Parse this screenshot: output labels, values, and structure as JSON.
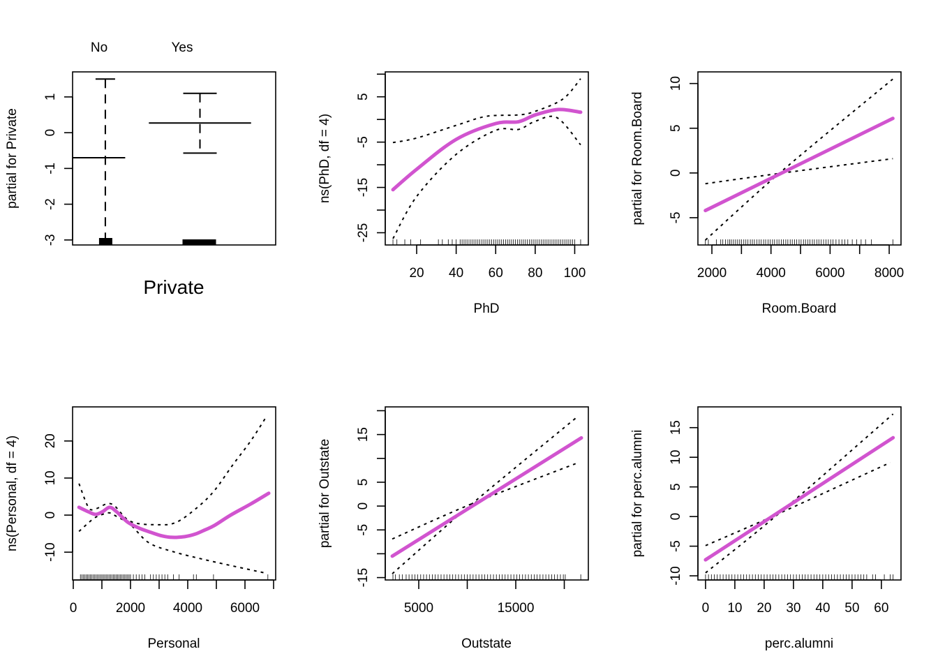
{
  "colors": {
    "fit": "#D154CF",
    "band": "#000000",
    "axis": "#000000"
  },
  "chart_data": [
    {
      "type": "line",
      "subtype": "factor",
      "xlabel": "Private",
      "ylabel": "partial for Private",
      "categories": [
        "No",
        "Yes"
      ],
      "ylim": [
        -3.14,
        1.7
      ],
      "yticks": [
        -3,
        -2,
        -1,
        0,
        1
      ],
      "ytick_labels": [
        "-3",
        "-2",
        "-1",
        "0",
        "1"
      ],
      "means": [
        -0.7,
        0.27
      ],
      "upper": [
        1.5,
        1.1
      ],
      "lower": [
        -3.0,
        -0.57
      ],
      "mean_span": [
        [
          0.654,
          1.21
        ],
        [
          1.46,
          2.54
        ]
      ]
    },
    {
      "type": "line",
      "xlabel": "PhD",
      "ylabel": "ns(PhD, df = 4)",
      "xlim": [
        4.1,
        106.9
      ],
      "ylim": [
        -27.7,
        10.5
      ],
      "xticks": [
        20,
        40,
        60,
        80,
        100
      ],
      "xtick_labels": [
        "20",
        "40",
        "60",
        "80",
        "100"
      ],
      "yticks": [
        -25,
        -20,
        -15,
        -10,
        -5,
        0,
        5,
        10
      ],
      "ytick_labels": [
        "-25",
        "",
        "-15",
        "",
        "-5",
        "",
        "5",
        ""
      ],
      "fit": [
        [
          8,
          -15.5
        ],
        [
          20,
          -11.0
        ],
        [
          40,
          -4.4
        ],
        [
          60,
          -0.9
        ],
        [
          71.6,
          -0.5
        ],
        [
          80,
          1.0
        ],
        [
          91.8,
          2.2
        ],
        [
          103,
          1.6
        ]
      ],
      "upper": [
        [
          8,
          -5.1
        ],
        [
          20,
          -4.1
        ],
        [
          40,
          -1.3
        ],
        [
          55.4,
          0.7
        ],
        [
          71.6,
          1.0
        ],
        [
          80,
          1.8
        ],
        [
          94,
          4.5
        ],
        [
          103,
          9.0
        ]
      ],
      "lower": [
        [
          8,
          -26.3
        ],
        [
          20,
          -17
        ],
        [
          40,
          -7.7
        ],
        [
          60,
          -2.4
        ],
        [
          71.6,
          -2.2
        ],
        [
          80,
          -0.4
        ],
        [
          91,
          0.4
        ],
        [
          103,
          -5.6
        ]
      ],
      "rug": [
        8,
        10,
        14,
        17,
        22,
        31,
        33,
        36,
        38,
        40,
        42,
        43,
        44,
        45,
        46,
        47,
        48,
        49,
        50,
        51,
        52,
        53,
        54,
        55,
        56,
        57,
        58,
        59,
        60,
        61,
        62,
        63,
        64,
        65,
        66,
        67,
        68,
        69,
        70,
        71,
        72,
        73,
        74,
        75,
        76,
        77,
        78,
        79,
        80,
        81,
        82,
        83,
        84,
        85,
        86,
        87,
        88,
        89,
        90,
        91,
        92,
        93,
        94,
        95,
        96,
        97,
        98,
        99,
        100,
        103
      ]
    },
    {
      "type": "line",
      "xlabel": "Room.Board",
      "ylabel": "partial for Room.Board",
      "xlim": [
        1527,
        8400
      ],
      "ylim": [
        -8.05,
        11.3
      ],
      "xticks": [
        2000,
        3000,
        4000,
        5000,
        6000,
        7000,
        8000
      ],
      "xtick_labels": [
        "2000",
        "",
        "4000",
        "",
        "6000",
        "",
        "8000"
      ],
      "yticks": [
        -5,
        0,
        5,
        10
      ],
      "ytick_labels": [
        "-5",
        "0",
        "5",
        "10"
      ],
      "fit": [
        [
          1780,
          -4.2
        ],
        [
          8124,
          6.1
        ]
      ],
      "upper": [
        [
          1780,
          -7.5
        ],
        [
          4400,
          0.3
        ],
        [
          8124,
          10.5
        ]
      ],
      "lower": [
        [
          1780,
          -1.2
        ],
        [
          4400,
          0.0
        ],
        [
          8124,
          1.6
        ]
      ],
      "rug": [
        1780,
        1880,
        2150,
        2300,
        2370,
        2460,
        2540,
        2600,
        2660,
        2730,
        2800,
        2870,
        2940,
        3000,
        3080,
        3150,
        3220,
        3300,
        3370,
        3440,
        3520,
        3600,
        3670,
        3750,
        3820,
        3900,
        3970,
        4050,
        4120,
        4200,
        4270,
        4350,
        4420,
        4500,
        4570,
        4650,
        4720,
        4800,
        4870,
        4950,
        5020,
        5100,
        5170,
        5250,
        5320,
        5400,
        5470,
        5550,
        5620,
        5700,
        5780,
        5860,
        5940,
        6020,
        6100,
        6200,
        6300,
        6400,
        6500,
        6600,
        6750,
        6900,
        7050,
        7200,
        7400,
        8124
      ]
    },
    {
      "type": "line",
      "xlabel": "Personal",
      "ylabel": "ns(Personal, df = 4)",
      "xlim": [
        -24,
        7073
      ],
      "ylim": [
        -17.5,
        29.2
      ],
      "xticks": [
        0,
        1000,
        2000,
        3000,
        4000,
        5000,
        6000,
        7000
      ],
      "xtick_labels": [
        "0",
        "",
        "2000",
        "",
        "4000",
        "",
        "6000",
        ""
      ],
      "yticks": [
        -10,
        0,
        10,
        20
      ],
      "ytick_labels": [
        "-10",
        "0",
        "10",
        "20"
      ],
      "fit": [
        [
          200,
          2.1
        ],
        [
          530,
          0.9
        ],
        [
          780,
          0.2
        ],
        [
          1020,
          0.9
        ],
        [
          1270,
          2.1
        ],
        [
          1500,
          1.0
        ],
        [
          1900,
          -1.9
        ],
        [
          2300,
          -3.5
        ],
        [
          2730,
          -4.7
        ],
        [
          3100,
          -5.6
        ],
        [
          3460,
          -6.0
        ],
        [
          3900,
          -5.8
        ],
        [
          4270,
          -5.1
        ],
        [
          4600,
          -4.0
        ],
        [
          4930,
          -2.8
        ],
        [
          5500,
          0.0
        ],
        [
          6200,
          3.0
        ],
        [
          6830,
          5.9
        ]
      ],
      "upper": [
        [
          200,
          8.5
        ],
        [
          530,
          2.1
        ],
        [
          780,
          1.7
        ],
        [
          1340,
          3.0
        ],
        [
          2000,
          -1.7
        ],
        [
          2980,
          -2.6
        ],
        [
          3610,
          -1.9
        ],
        [
          4340,
          2.1
        ],
        [
          4930,
          6.6
        ],
        [
          5560,
          13.4
        ],
        [
          6200,
          20
        ],
        [
          6750,
          26.6
        ]
      ],
      "lower": [
        [
          200,
          -4.4
        ],
        [
          700,
          -1.0
        ],
        [
          1020,
          0.2
        ],
        [
          1270,
          0.6
        ],
        [
          1500,
          -0.3
        ],
        [
          2000,
          -2.6
        ],
        [
          2630,
          -7.4
        ],
        [
          3460,
          -9.8
        ],
        [
          4750,
          -12.3
        ],
        [
          6750,
          -15.7
        ]
      ],
      "rug": [
        250,
        300,
        350,
        400,
        450,
        500,
        550,
        600,
        650,
        700,
        750,
        800,
        850,
        900,
        950,
        1000,
        1050,
        1100,
        1150,
        1200,
        1250,
        1300,
        1350,
        1400,
        1450,
        1500,
        1550,
        1600,
        1650,
        1700,
        1750,
        1800,
        1850,
        1900,
        1950,
        2000,
        2100,
        2200,
        2300,
        2400,
        2500,
        2700,
        2800,
        2900,
        3000,
        3100,
        3200,
        3300,
        3500,
        3700,
        4200,
        4300,
        4900,
        6800
      ]
    },
    {
      "type": "line",
      "xlabel": "Outstate",
      "ylabel": "partial for Outstate",
      "xlim": [
        1547,
        22480
      ],
      "ylim": [
        -15.5,
        20.8
      ],
      "xticks": [
        5000,
        10000,
        15000,
        20000
      ],
      "xtick_labels": [
        "5000",
        "",
        "15000",
        ""
      ],
      "yticks": [
        -15,
        -10,
        -5,
        0,
        5,
        10,
        15,
        20
      ],
      "ytick_labels": [
        "-15",
        "",
        "-5",
        "0",
        "5",
        "",
        "15",
        ""
      ],
      "fit": [
        [
          2270,
          -10.5
        ],
        [
          21760,
          14.3
        ]
      ],
      "upper": [
        [
          2270,
          -14.2
        ],
        [
          10500,
          0.5
        ],
        [
          21330,
          18.7
        ]
      ],
      "lower": [
        [
          2270,
          -6.9
        ],
        [
          10500,
          0.5
        ],
        [
          21560,
          9.2
        ]
      ],
      "rug": [
        2340,
        2600,
        3000,
        3300,
        3700,
        4000,
        4300,
        4600,
        4900,
        5200,
        5500,
        5800,
        6100,
        6400,
        6700,
        7000,
        7300,
        7600,
        7900,
        8200,
        8500,
        8800,
        9100,
        9400,
        9700,
        10000,
        10300,
        10600,
        10900,
        11200,
        11500,
        11800,
        12100,
        12400,
        12700,
        13000,
        13300,
        13600,
        13900,
        14200,
        14500,
        14800,
        15100,
        15400,
        15700,
        16000,
        16300,
        16600,
        16900,
        17200,
        17500,
        17800,
        18100,
        18400,
        18700,
        19000,
        19300,
        19600,
        19900,
        20100,
        21700
      ]
    },
    {
      "type": "line",
      "xlabel": "perc.alumni",
      "ylabel": "partial for perc.alumni",
      "xlim": [
        -2.6,
        66.7
      ],
      "ylim": [
        -10.7,
        18.5
      ],
      "xticks": [
        0,
        10,
        20,
        30,
        40,
        50,
        60
      ],
      "xtick_labels": [
        "0",
        "10",
        "20",
        "30",
        "40",
        "50",
        "60"
      ],
      "yticks": [
        -10,
        -5,
        0,
        5,
        10,
        15
      ],
      "ytick_labels": [
        "-10",
        "-5",
        "0",
        "5",
        "10",
        "15"
      ],
      "fit": [
        [
          0,
          -7.3
        ],
        [
          64,
          13.3
        ]
      ],
      "upper": [
        [
          0,
          -9.5
        ],
        [
          25,
          0.5
        ],
        [
          64,
          17.3
        ]
      ],
      "lower": [
        [
          0,
          -4.9
        ],
        [
          25,
          0.5
        ],
        [
          63,
          9.1
        ]
      ],
      "rug": [
        0,
        1,
        2,
        3,
        4,
        5,
        6,
        7,
        8,
        9,
        10,
        11,
        12,
        13,
        14,
        15,
        16,
        17,
        18,
        19,
        20,
        21,
        22,
        23,
        24,
        25,
        26,
        27,
        28,
        29,
        30,
        31,
        32,
        33,
        34,
        35,
        36,
        37,
        38,
        39,
        40,
        41,
        42,
        43,
        44,
        45,
        46,
        47,
        48,
        49,
        50,
        51,
        52,
        53,
        54,
        55,
        57,
        58,
        61,
        63,
        64
      ]
    }
  ]
}
